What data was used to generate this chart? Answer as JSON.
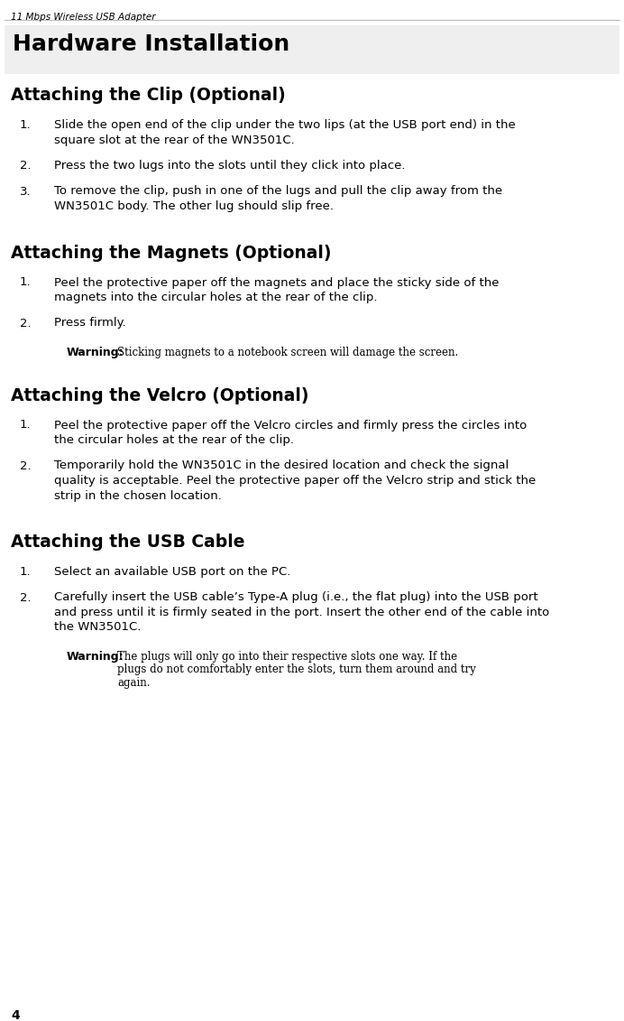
{
  "bg_color": "#ffffff",
  "header_italic": "11 Mbps Wireless USB Adapter",
  "page_number": "4",
  "chapter_title": "Hardware Installation",
  "chapter_box_color": "#e8e8e8",
  "header_line_color": "#999999",
  "sections": [
    {
      "title": "Attaching the Clip (Optional)",
      "items": [
        {
          "num": "1.",
          "text": "Slide the open end of the clip under the two lips (at the USB port end) in the\nsquare slot at the rear of the WN3501C."
        },
        {
          "num": "2.",
          "text": "Press the two lugs into the slots until they click into place."
        },
        {
          "num": "3.",
          "text": "To remove the clip, push in one of the lugs and pull the clip away from the\nWN3501C body. The other lug should slip free."
        }
      ],
      "warnings": []
    },
    {
      "title": "Attaching the Magnets (Optional)",
      "items": [
        {
          "num": "1.",
          "text": "Peel the protective paper off the magnets and place the sticky side of the\nmagnets into the circular holes at the rear of the clip."
        },
        {
          "num": "2.",
          "text": "Press firmly."
        }
      ],
      "warnings": [
        {
          "label": "Warning:",
          "text": "Sticking magnets to a notebook screen will damage the screen.",
          "after_item": 2,
          "lines": 1
        }
      ]
    },
    {
      "title": "Attaching the Velcro (Optional)",
      "items": [
        {
          "num": "1.",
          "text": "Peel the protective paper off the Velcro circles and firmly press the circles into\nthe circular holes at the rear of the clip."
        },
        {
          "num": "2.",
          "text": "Temporarily hold the WN3501C in the desired location and check the signal\nquality is acceptable. Peel the protective paper off the Velcro strip and stick the\nstrip in the chosen location."
        }
      ],
      "warnings": []
    },
    {
      "title": "Attaching the USB Cable",
      "items": [
        {
          "num": "1.",
          "text": "Select an available USB port on the PC."
        },
        {
          "num": "2.",
          "text": "Carefully insert the USB cable’s Type-A plug (i.e., the flat plug) into the USB port\nand press until it is firmly seated in the port. Insert the other end of the cable into\nthe WN3501C."
        }
      ],
      "warnings": [
        {
          "label": "Warning:",
          "text_lines": [
            "The plugs will only go into their respective slots one way. If the",
            "plugs do not comfortably enter the slots, turn them around and try",
            "again."
          ],
          "after_item": 2,
          "lines": 3
        }
      ]
    }
  ]
}
